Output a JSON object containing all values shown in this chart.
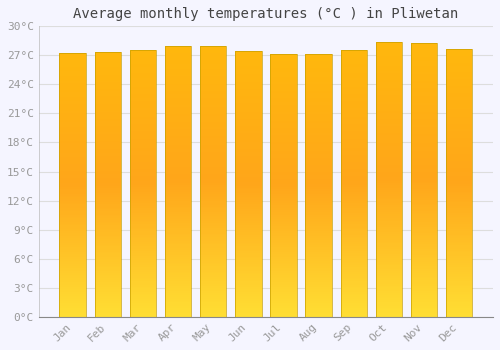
{
  "months": [
    "Jan",
    "Feb",
    "Mar",
    "Apr",
    "May",
    "Jun",
    "Jul",
    "Aug",
    "Sep",
    "Oct",
    "Nov",
    "Dec"
  ],
  "temperatures": [
    27.2,
    27.3,
    27.6,
    28.0,
    28.0,
    27.4,
    27.1,
    27.1,
    27.6,
    28.4,
    28.3,
    27.7
  ],
  "title": "Average monthly temperatures (°C ) in Pliwetan",
  "ylim": [
    0,
    30
  ],
  "yticks": [
    0,
    3,
    6,
    9,
    12,
    15,
    18,
    21,
    24,
    27,
    30
  ],
  "ytick_labels": [
    "0°C",
    "3°C",
    "6°C",
    "9°C",
    "12°C",
    "15°C",
    "18°C",
    "21°C",
    "24°C",
    "27°C",
    "30°C"
  ],
  "bar_color_bottom": "#FFCC33",
  "bar_color_mid": "#FFA500",
  "bar_color_top": "#FFB700",
  "bar_edge_color": "#C8A000",
  "background_color": "#f5f5ff",
  "plot_bg_color": "#f5f5ff",
  "grid_color": "#dddddd",
  "title_fontsize": 10,
  "tick_fontsize": 8,
  "title_color": "#444444",
  "tick_color": "#999999",
  "bar_width": 0.75
}
